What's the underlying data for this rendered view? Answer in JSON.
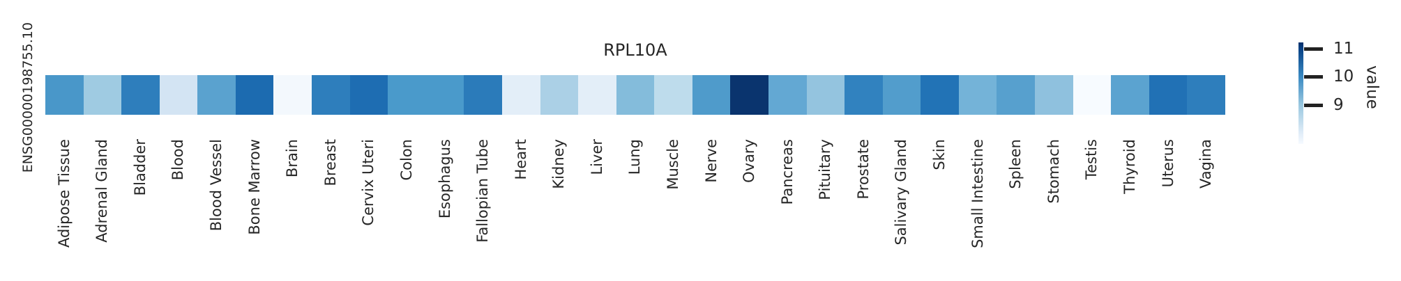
{
  "chart_data": {
    "type": "heatmap",
    "title": "RPL10A",
    "rows": [
      "ENSG00000198755.10"
    ],
    "columns": [
      "Adipose Tissue",
      "Adrenal Gland",
      "Bladder",
      "Blood",
      "Blood Vessel",
      "Bone Marrow",
      "Brain",
      "Breast",
      "Cervix Uteri",
      "Colon",
      "Esophagus",
      "Fallopian Tube",
      "Heart",
      "Kidney",
      "Liver",
      "Lung",
      "Muscle",
      "Nerve",
      "Ovary",
      "Pancreas",
      "Pituitary",
      "Prostate",
      "Salivary Gland",
      "Skin",
      "Small Intestine",
      "Spleen",
      "Stomach",
      "Testis",
      "Thyroid",
      "Uterus",
      "Vagina"
    ],
    "values": [
      [
        9.8,
        8.9,
        10.1,
        8.2,
        9.6,
        10.4,
        7.7,
        10.1,
        10.3,
        9.7,
        9.7,
        10.2,
        8.0,
        8.8,
        8.0,
        9.2,
        8.6,
        9.7,
        11.2,
        9.5,
        9.0,
        10.0,
        9.7,
        10.3,
        9.3,
        9.6,
        9.1,
        7.6,
        9.6,
        10.3,
        10.1
      ]
    ],
    "cell_colors": [
      [
        "#4997c9",
        "#9fcbe2",
        "#2e7ebc",
        "#d3e4f3",
        "#5aa2cf",
        "#1c6bb0",
        "#f3f8fd",
        "#2e7ebc",
        "#1e6db2",
        "#4a9acb",
        "#4a9acb",
        "#2b7bba",
        "#e3eef8",
        "#abd0e6",
        "#e3eef8",
        "#84bcdb",
        "#bedcec",
        "#4f9bcb",
        "#0a346e",
        "#63a8d3",
        "#94c4df",
        "#3182bf",
        "#529dcc",
        "#2273b6",
        "#74b3d8",
        "#57a0ce",
        "#8fc1de",
        "#f7fbff",
        "#5ba3d0",
        "#2171b5",
        "#2e7ebc"
      ]
    ],
    "colormap": "Blues",
    "colorbar": {
      "label": "value",
      "ticks": [
        11,
        10,
        9
      ],
      "range_est": [
        7.6,
        11.25
      ],
      "top_color": "#08306b",
      "bottom_color": "#f7fbff",
      "position": "right"
    },
    "layout": {
      "x_tick_rotation": 90,
      "y_tick_rotation": 90,
      "grid": false,
      "background": "#ffffff",
      "text_color": "#262626"
    }
  }
}
